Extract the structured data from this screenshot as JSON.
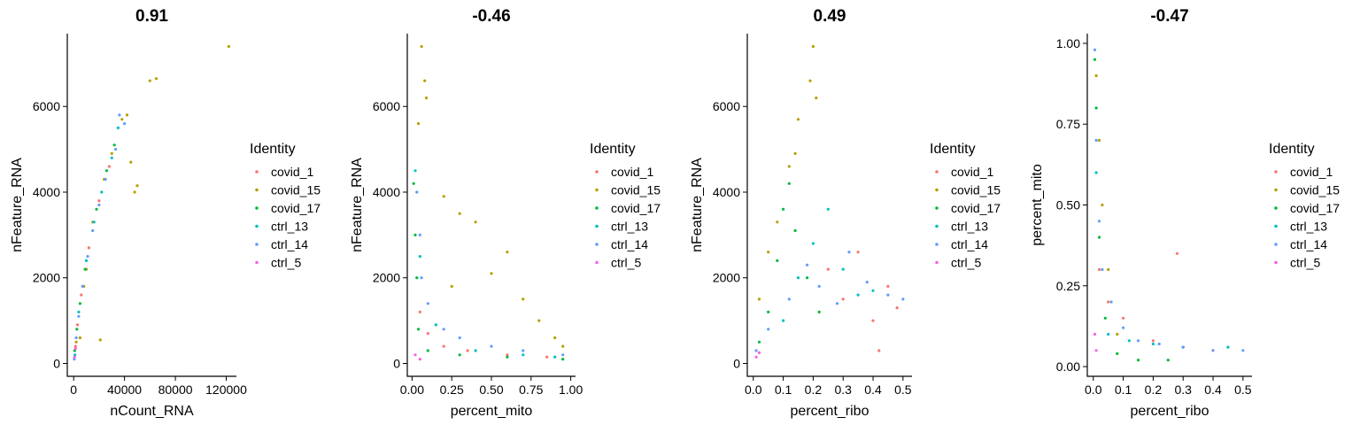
{
  "legend": {
    "title": "Identity",
    "entries": [
      {
        "label": "covid_1",
        "color": "#F8766D"
      },
      {
        "label": "covid_15",
        "color": "#B79F00"
      },
      {
        "label": "covid_17",
        "color": "#00BA38"
      },
      {
        "label": "ctrl_13",
        "color": "#00BFC4"
      },
      {
        "label": "ctrl_14",
        "color": "#619CFF"
      },
      {
        "label": "ctrl_5",
        "color": "#F564E3"
      }
    ]
  },
  "chart_data": [
    {
      "type": "scatter",
      "title": "0.91",
      "xlabel": "nCount_RNA",
      "ylabel": "nFeature_RNA",
      "xlim": [
        -5000,
        128000
      ],
      "ylim": [
        -300,
        7700
      ],
      "xticks": [
        {
          "value": 0,
          "label": "0"
        },
        {
          "value": 40000,
          "label": "40000"
        },
        {
          "value": 80000,
          "label": "80000"
        },
        {
          "value": 120000,
          "label": "120000"
        }
      ],
      "yticks": [
        {
          "value": 0,
          "label": "0"
        },
        {
          "value": 2000,
          "label": "2000"
        },
        {
          "value": 4000,
          "label": "4000"
        },
        {
          "value": 6000,
          "label": "6000"
        }
      ],
      "series": [
        {
          "name": "covid_1",
          "points": [
            [
              1500,
              400
            ],
            [
              3000,
              900
            ],
            [
              6000,
              1600
            ],
            [
              12000,
              2700
            ],
            [
              20000,
              3800
            ],
            [
              28000,
              4600
            ]
          ]
        },
        {
          "name": "covid_15",
          "points": [
            [
              2000,
              500
            ],
            [
              5000,
              600
            ],
            [
              8000,
              1800
            ],
            [
              15000,
              3300
            ],
            [
              24000,
              4300
            ],
            [
              30000,
              4900
            ],
            [
              38000,
              5700
            ],
            [
              42000,
              5800
            ],
            [
              48000,
              4000
            ],
            [
              50000,
              4150
            ],
            [
              45000,
              4700
            ],
            [
              60000,
              6600
            ],
            [
              65000,
              6650
            ],
            [
              122000,
              7400
            ],
            [
              21000,
              550
            ],
            [
              10000,
              2200
            ]
          ]
        },
        {
          "name": "covid_17",
          "points": [
            [
              800,
              300
            ],
            [
              2500,
              800
            ],
            [
              5000,
              1400
            ],
            [
              9000,
              2200
            ],
            [
              18000,
              3600
            ],
            [
              26000,
              4500
            ],
            [
              32000,
              5100
            ]
          ]
        },
        {
          "name": "ctrl_13",
          "points": [
            [
              1000,
              200
            ],
            [
              4000,
              1200
            ],
            [
              10000,
              2400
            ],
            [
              16000,
              3300
            ],
            [
              22000,
              4000
            ],
            [
              30000,
              4800
            ],
            [
              35000,
              5500
            ]
          ]
        },
        {
          "name": "ctrl_14",
          "points": [
            [
              500,
              100
            ],
            [
              2000,
              600
            ],
            [
              4000,
              1100
            ],
            [
              7000,
              1800
            ],
            [
              11000,
              2500
            ],
            [
              15000,
              3100
            ],
            [
              20000,
              3700
            ],
            [
              25000,
              4300
            ],
            [
              33000,
              5000
            ],
            [
              36000,
              5800
            ],
            [
              40000,
              5600
            ]
          ]
        },
        {
          "name": "ctrl_5",
          "points": [
            [
              700,
              150
            ],
            [
              1500,
              350
            ]
          ]
        }
      ]
    },
    {
      "type": "scatter",
      "title": "-0.46",
      "xlabel": "percent_mito",
      "ylabel": "nFeature_RNA",
      "xlim": [
        -0.03,
        1.03
      ],
      "ylim": [
        -300,
        7700
      ],
      "xticks": [
        {
          "value": 0,
          "label": "0.00"
        },
        {
          "value": 0.25,
          "label": "0.25"
        },
        {
          "value": 0.5,
          "label": "0.50"
        },
        {
          "value": 0.75,
          "label": "0.75"
        },
        {
          "value": 1.0,
          "label": "1.00"
        }
      ],
      "yticks": [
        {
          "value": 0,
          "label": "0"
        },
        {
          "value": 2000,
          "label": "2000"
        },
        {
          "value": 4000,
          "label": "4000"
        },
        {
          "value": 6000,
          "label": "6000"
        }
      ],
      "series": [
        {
          "name": "covid_1",
          "points": [
            [
              0.05,
              1200
            ],
            [
              0.1,
              700
            ],
            [
              0.2,
              400
            ],
            [
              0.35,
              300
            ],
            [
              0.6,
              200
            ],
            [
              0.85,
              150
            ]
          ]
        },
        {
          "name": "covid_15",
          "points": [
            [
              0.06,
              7400
            ],
            [
              0.08,
              6600
            ],
            [
              0.09,
              6200
            ],
            [
              0.04,
              5600
            ],
            [
              0.2,
              3900
            ],
            [
              0.3,
              3500
            ],
            [
              0.4,
              3300
            ],
            [
              0.5,
              2100
            ],
            [
              0.6,
              2600
            ],
            [
              0.7,
              1500
            ],
            [
              0.8,
              1000
            ],
            [
              0.9,
              600
            ],
            [
              0.95,
              400
            ],
            [
              0.25,
              1800
            ]
          ]
        },
        {
          "name": "covid_17",
          "points": [
            [
              0.01,
              4200
            ],
            [
              0.02,
              3000
            ],
            [
              0.03,
              2000
            ],
            [
              0.04,
              800
            ],
            [
              0.1,
              300
            ],
            [
              0.3,
              200
            ],
            [
              0.6,
              150
            ],
            [
              0.95,
              100
            ]
          ]
        },
        {
          "name": "ctrl_13",
          "points": [
            [
              0.02,
              4500
            ],
            [
              0.05,
              2500
            ],
            [
              0.15,
              900
            ],
            [
              0.4,
              300
            ],
            [
              0.7,
              200
            ],
            [
              0.9,
              150
            ]
          ]
        },
        {
          "name": "ctrl_14",
          "points": [
            [
              0.03,
              4000
            ],
            [
              0.05,
              3000
            ],
            [
              0.06,
              2000
            ],
            [
              0.1,
              1400
            ],
            [
              0.2,
              800
            ],
            [
              0.3,
              600
            ],
            [
              0.5,
              400
            ],
            [
              0.7,
              300
            ],
            [
              0.95,
              200
            ]
          ]
        },
        {
          "name": "ctrl_5",
          "points": [
            [
              0.02,
              200
            ],
            [
              0.05,
              100
            ]
          ]
        }
      ]
    },
    {
      "type": "scatter",
      "title": "0.49",
      "xlabel": "percent_ribo",
      "ylabel": "nFeature_RNA",
      "xlim": [
        -0.02,
        0.53
      ],
      "ylim": [
        -300,
        7700
      ],
      "xticks": [
        {
          "value": 0,
          "label": "0.0"
        },
        {
          "value": 0.1,
          "label": "0.1"
        },
        {
          "value": 0.2,
          "label": "0.2"
        },
        {
          "value": 0.3,
          "label": "0.3"
        },
        {
          "value": 0.4,
          "label": "0.4"
        },
        {
          "value": 0.5,
          "label": "0.5"
        }
      ],
      "yticks": [
        {
          "value": 0,
          "label": "0"
        },
        {
          "value": 2000,
          "label": "2000"
        },
        {
          "value": 4000,
          "label": "4000"
        },
        {
          "value": 6000,
          "label": "6000"
        }
      ],
      "series": [
        {
          "name": "covid_1",
          "points": [
            [
              0.25,
              2200
            ],
            [
              0.3,
              1500
            ],
            [
              0.35,
              2600
            ],
            [
              0.4,
              1000
            ],
            [
              0.45,
              1800
            ],
            [
              0.48,
              1300
            ],
            [
              0.42,
              300
            ]
          ]
        },
        {
          "name": "covid_15",
          "points": [
            [
              0.02,
              1500
            ],
            [
              0.05,
              2600
            ],
            [
              0.08,
              3300
            ],
            [
              0.12,
              4600
            ],
            [
              0.15,
              5700
            ],
            [
              0.2,
              7400
            ],
            [
              0.19,
              6600
            ],
            [
              0.21,
              6200
            ],
            [
              0.14,
              4900
            ]
          ]
        },
        {
          "name": "covid_17",
          "points": [
            [
              0.02,
              500
            ],
            [
              0.05,
              1200
            ],
            [
              0.08,
              2400
            ],
            [
              0.1,
              3600
            ],
            [
              0.12,
              4200
            ],
            [
              0.14,
              3100
            ],
            [
              0.18,
              2000
            ],
            [
              0.22,
              1200
            ]
          ]
        },
        {
          "name": "ctrl_13",
          "points": [
            [
              0.1,
              1000
            ],
            [
              0.15,
              2000
            ],
            [
              0.2,
              2800
            ],
            [
              0.25,
              3600
            ],
            [
              0.3,
              2200
            ],
            [
              0.35,
              1600
            ],
            [
              0.4,
              1700
            ]
          ]
        },
        {
          "name": "ctrl_14",
          "points": [
            [
              0.01,
              300
            ],
            [
              0.05,
              800
            ],
            [
              0.12,
              1500
            ],
            [
              0.18,
              2300
            ],
            [
              0.22,
              1800
            ],
            [
              0.28,
              1400
            ],
            [
              0.32,
              2600
            ],
            [
              0.38,
              1900
            ],
            [
              0.45,
              1600
            ],
            [
              0.5,
              1500
            ]
          ]
        },
        {
          "name": "ctrl_5",
          "points": [
            [
              0.01,
              150
            ],
            [
              0.02,
              250
            ]
          ]
        }
      ]
    },
    {
      "type": "scatter",
      "title": "-0.47",
      "xlabel": "percent_ribo",
      "ylabel": "percent_mito",
      "xlim": [
        -0.02,
        0.53
      ],
      "ylim": [
        -0.03,
        1.03
      ],
      "xticks": [
        {
          "value": 0,
          "label": "0.0"
        },
        {
          "value": 0.1,
          "label": "0.1"
        },
        {
          "value": 0.2,
          "label": "0.2"
        },
        {
          "value": 0.3,
          "label": "0.3"
        },
        {
          "value": 0.4,
          "label": "0.4"
        },
        {
          "value": 0.5,
          "label": "0.5"
        }
      ],
      "yticks": [
        {
          "value": 0,
          "label": "0.00"
        },
        {
          "value": 0.25,
          "label": "0.25"
        },
        {
          "value": 0.5,
          "label": "0.50"
        },
        {
          "value": 0.75,
          "label": "0.75"
        },
        {
          "value": 1.0,
          "label": "1.00"
        }
      ],
      "series": [
        {
          "name": "covid_1",
          "points": [
            [
              0.02,
              0.3
            ],
            [
              0.05,
              0.2
            ],
            [
              0.1,
              0.15
            ],
            [
              0.2,
              0.08
            ],
            [
              0.28,
              0.35
            ],
            [
              0.3,
              0.06
            ],
            [
              0.4,
              0.05
            ]
          ]
        },
        {
          "name": "covid_15",
          "points": [
            [
              0.01,
              0.9
            ],
            [
              0.02,
              0.7
            ],
            [
              0.03,
              0.5
            ],
            [
              0.05,
              0.3
            ],
            [
              0.08,
              0.1
            ]
          ]
        },
        {
          "name": "covid_17",
          "points": [
            [
              0.005,
              0.95
            ],
            [
              0.01,
              0.8
            ],
            [
              0.02,
              0.4
            ],
            [
              0.04,
              0.15
            ],
            [
              0.08,
              0.04
            ],
            [
              0.15,
              0.02
            ],
            [
              0.25,
              0.02
            ]
          ]
        },
        {
          "name": "ctrl_13",
          "points": [
            [
              0.01,
              0.6
            ],
            [
              0.05,
              0.1
            ],
            [
              0.12,
              0.08
            ],
            [
              0.2,
              0.07
            ],
            [
              0.3,
              0.06
            ],
            [
              0.45,
              0.06
            ]
          ]
        },
        {
          "name": "ctrl_14",
          "points": [
            [
              0.005,
              0.98
            ],
            [
              0.01,
              0.7
            ],
            [
              0.02,
              0.45
            ],
            [
              0.03,
              0.3
            ],
            [
              0.06,
              0.2
            ],
            [
              0.1,
              0.12
            ],
            [
              0.15,
              0.08
            ],
            [
              0.22,
              0.07
            ],
            [
              0.3,
              0.06
            ],
            [
              0.4,
              0.05
            ],
            [
              0.5,
              0.05
            ]
          ]
        },
        {
          "name": "ctrl_5",
          "points": [
            [
              0.005,
              0.1
            ],
            [
              0.01,
              0.05
            ]
          ]
        }
      ]
    }
  ]
}
